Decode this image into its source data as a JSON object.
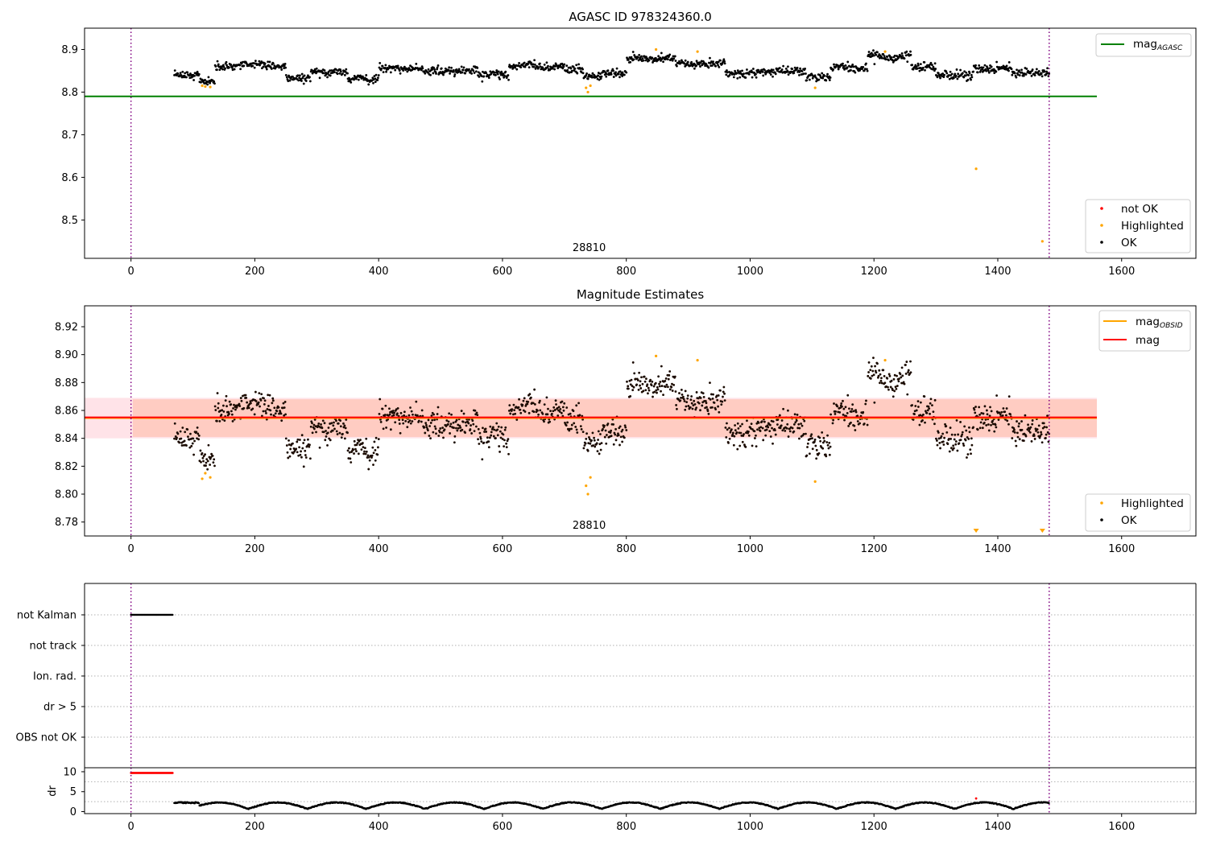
{
  "chart_data": [
    {
      "type": "scatter",
      "title": "AGASC ID 978324360.0",
      "xlim": [
        -75,
        1720
      ],
      "ylim": [
        8.41,
        8.95
      ],
      "x_ticks": [
        0,
        200,
        400,
        600,
        800,
        1000,
        1200,
        1400,
        1600
      ],
      "y_ticks": [
        8.5,
        8.6,
        8.7,
        8.8,
        8.9
      ],
      "annotation": "28810",
      "vlines": [
        0,
        1483
      ],
      "hlines": [
        {
          "name": "mag_AGASC",
          "y": 8.79,
          "x": [
            -75,
            1560
          ],
          "color": "#008000"
        }
      ],
      "series": [
        {
          "name": "OK",
          "color": "#000000",
          "description": "dense time series, x 70-1483, y ~8.82-8.89"
        },
        {
          "name": "Highlighted",
          "color": "#ffa500",
          "points": [
            [
              115,
              8.815
            ],
            [
              120,
              8.813
            ],
            [
              128,
              8.812
            ],
            [
              735,
              8.81
            ],
            [
              738,
              8.8
            ],
            [
              742,
              8.815
            ],
            [
              848,
              8.9
            ],
            [
              915,
              8.895
            ],
            [
              1105,
              8.81
            ],
            [
              1218,
              8.895
            ],
            [
              1365,
              8.62
            ],
            [
              1472,
              8.45
            ]
          ]
        },
        {
          "name": "not OK",
          "color": "#ff0000",
          "points": []
        }
      ],
      "legends": [
        {
          "position": "top-right",
          "entries": [
            {
              "label": "mag",
              "subscript": "AGASC",
              "kind": "line",
              "color": "#008000"
            }
          ]
        },
        {
          "position": "bottom-right",
          "entries": [
            {
              "label": "not OK",
              "kind": "marker",
              "color": "#ff0000"
            },
            {
              "label": "Highlighted",
              "kind": "marker",
              "color": "#ffa500"
            },
            {
              "label": "OK",
              "kind": "marker",
              "color": "#000000"
            }
          ]
        }
      ]
    },
    {
      "type": "scatter",
      "title": "Magnitude Estimates",
      "xlim": [
        -75,
        1720
      ],
      "ylim": [
        8.77,
        8.935
      ],
      "x_ticks": [
        0,
        200,
        400,
        600,
        800,
        1000,
        1200,
        1400,
        1600
      ],
      "y_ticks": [
        8.78,
        8.8,
        8.82,
        8.84,
        8.86,
        8.88,
        8.9,
        8.92
      ],
      "annotation": "28810",
      "vlines": [
        0,
        1483
      ],
      "bands": [
        {
          "y": [
            8.84,
            8.869
          ],
          "x": [
            -75,
            1560
          ],
          "color": "#ffc0cb"
        },
        {
          "y": [
            8.841,
            8.868
          ],
          "x": [
            -75,
            1560
          ],
          "color": "#ffa07a"
        }
      ],
      "hlines": [
        {
          "name": "mag_OBSID",
          "y": 8.8545,
          "x": [
            -75,
            1560
          ],
          "color": "#ffa500"
        },
        {
          "name": "mag",
          "y": 8.855,
          "x": [
            -75,
            1560
          ],
          "color": "#ff0000"
        }
      ],
      "series": [
        {
          "name": "OK",
          "color": "#000000",
          "description": "dense time series, x 70-1483, y ~8.82-8.89"
        },
        {
          "name": "Highlighted",
          "color": "#ffa500",
          "points": [
            [
              115,
              8.811
            ],
            [
              120,
              8.815
            ],
            [
              128,
              8.812
            ],
            [
              735,
              8.806
            ],
            [
              738,
              8.8
            ],
            [
              742,
              8.812
            ],
            [
              848,
              8.899
            ],
            [
              915,
              8.896
            ],
            [
              1105,
              8.809
            ],
            [
              1218,
              8.896
            ]
          ]
        }
      ],
      "offscale_markers": [
        1365,
        1472
      ],
      "legends": [
        {
          "position": "top-right",
          "entries": [
            {
              "label": "mag",
              "subscript": "OBSID",
              "kind": "line",
              "color": "#ffa500"
            },
            {
              "label": "mag",
              "kind": "line",
              "color": "#ff0000"
            }
          ]
        },
        {
          "position": "bottom-right",
          "entries": [
            {
              "label": "Highlighted",
              "kind": "marker",
              "color": "#ffa500"
            },
            {
              "label": "OK",
              "kind": "marker",
              "color": "#000000"
            }
          ]
        }
      ]
    },
    {
      "type": "scatter",
      "title": "",
      "xlim": [
        -75,
        1720
      ],
      "categories": [
        "not Kalman",
        "not track",
        "Ion. rad.",
        "dr > 5",
        "OBS not OK"
      ],
      "vlines": [
        0,
        1483
      ],
      "flags": [
        {
          "category": "not Kalman",
          "x": [
            0,
            68
          ],
          "color": "#000000"
        }
      ]
    },
    {
      "type": "scatter",
      "title": "",
      "xlim": [
        -75,
        1720
      ],
      "ylim": [
        -0.5,
        11
      ],
      "ylabel": "dr",
      "x_ticks": [
        0,
        200,
        400,
        600,
        800,
        1000,
        1200,
        1400,
        1600
      ],
      "y_ticks": [
        0,
        5,
        10
      ],
      "vlines": [
        0,
        1483
      ],
      "series": [
        {
          "name": "dr not OK",
          "color": "#ff0000",
          "points": [
            [
              1365,
              3.3
            ]
          ],
          "range": [
            0,
            68
          ],
          "y": 9.7
        },
        {
          "name": "dr",
          "color": "#000000",
          "description": "x 70-1483, y ~0-2.5"
        }
      ]
    }
  ]
}
